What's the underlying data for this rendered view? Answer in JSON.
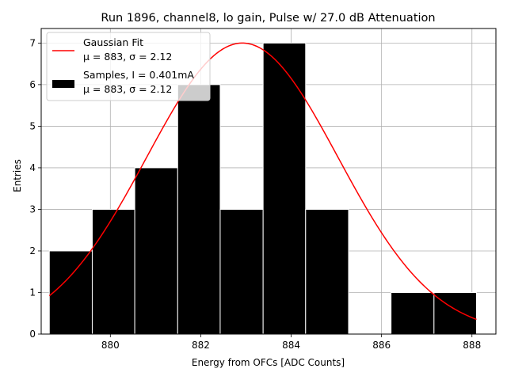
{
  "chart_data": {
    "type": "bar",
    "title": "Run 1896, channel8, lo gain, Pulse w/ 27.0 dB Attenuation",
    "xlabel": "Energy from OFCs [ADC Counts]",
    "ylabel": "Entries",
    "xlim": [
      878.47,
      888.53
    ],
    "ylim": [
      0,
      7.35
    ],
    "x_ticks": [
      880,
      882,
      884,
      886,
      888
    ],
    "y_ticks": [
      0,
      1,
      2,
      3,
      4,
      5,
      6,
      7
    ],
    "grid": true,
    "legend_position": "top-left",
    "histogram": {
      "name": "Samples, I = 0.401mA",
      "stats": "μ = 883, σ = 2.12",
      "color": "#000000",
      "bin_edges": [
        878.65,
        879.6,
        880.54,
        881.49,
        882.43,
        883.38,
        884.32,
        885.27,
        886.21,
        887.16,
        888.1
      ],
      "counts": [
        2,
        3,
        4,
        6,
        3,
        7,
        3,
        0,
        1,
        1
      ]
    },
    "fit": {
      "name": "Gaussian Fit",
      "stats": "μ = 883, σ = 2.12",
      "color": "#ff0000",
      "mu": 882.92,
      "sigma": 2.12,
      "amplitude": 7.0,
      "x_range": [
        878.65,
        888.1
      ]
    }
  }
}
